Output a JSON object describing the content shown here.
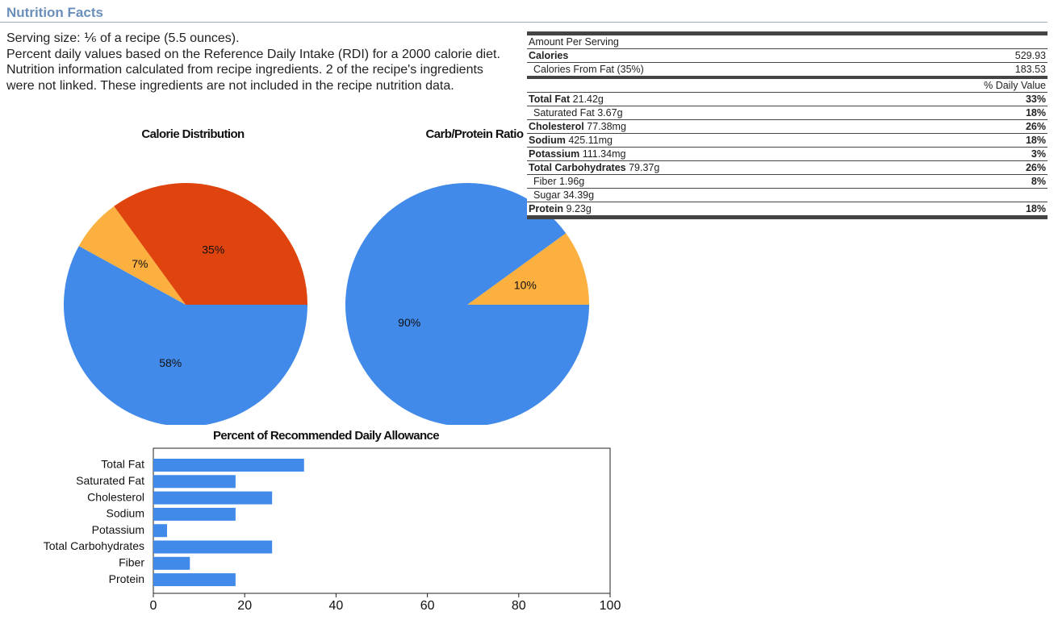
{
  "header": {
    "title": "Nutrition Facts"
  },
  "intro": [
    "Serving size: ⅙ of a recipe (5.5 ounces).",
    "Percent daily values based on the Reference Daily Intake (RDI) for a 2000 calorie diet.",
    "Nutrition information calculated from recipe ingredients. 2 of the recipe's ingredients were not linked. These ingredients are not included in the recipe nutrition data."
  ],
  "nutrition": {
    "amount_per_serving": "Amount Per Serving",
    "calories": {
      "label": "Calories",
      "value": "529.93"
    },
    "calories_from_fat": {
      "label": "Calories From Fat (35%)",
      "value": "183.53"
    },
    "daily_value_header": "% Daily Value",
    "rows": [
      {
        "name": "Total Fat",
        "amount": "21.42g",
        "dv": "33%"
      },
      {
        "name": "Saturated Fat",
        "amount": "3.67g",
        "dv": "18%"
      },
      {
        "name": "Cholesterol",
        "amount": "77.38mg",
        "dv": "26%"
      },
      {
        "name": "Sodium",
        "amount": "425.11mg",
        "dv": "18%"
      },
      {
        "name": "Potassium",
        "amount": "111.34mg",
        "dv": "3%"
      },
      {
        "name": "Total Carbohydrates",
        "amount": "79.37g",
        "dv": "26%"
      },
      {
        "name": "Fiber",
        "amount": "1.96g",
        "dv": "8%"
      },
      {
        "name": "Sugar",
        "amount": "34.39g"
      },
      {
        "name": "Protein",
        "amount": "9.23g",
        "dv": "18%"
      }
    ]
  },
  "chart_data": [
    {
      "type": "pie",
      "title": "Calorie Distribution",
      "values": [
        35,
        7,
        58
      ],
      "value_labels": [
        "35%",
        "7%",
        "58%"
      ],
      "colors": [
        "#e0440e",
        "#fbb040",
        "#418ae9"
      ]
    },
    {
      "type": "pie",
      "title": "Carb/Protein Ratio",
      "values": [
        10,
        90
      ],
      "value_labels": [
        "10%",
        "90%"
      ],
      "colors": [
        "#fbb040",
        "#418ae9"
      ]
    },
    {
      "type": "bar",
      "orientation": "horizontal",
      "title": "Percent of Recommended Daily Allowance",
      "categories": [
        "Total Fat",
        "Saturated Fat",
        "Cholesterol",
        "Sodium",
        "Potassium",
        "Total Carbohydrates",
        "Fiber",
        "Protein"
      ],
      "values": [
        33,
        18,
        26,
        18,
        3,
        26,
        8,
        18
      ],
      "color": "#418ae9",
      "xlim": [
        0,
        100
      ],
      "xticks": [
        0,
        20,
        40,
        60,
        80,
        100
      ]
    }
  ]
}
